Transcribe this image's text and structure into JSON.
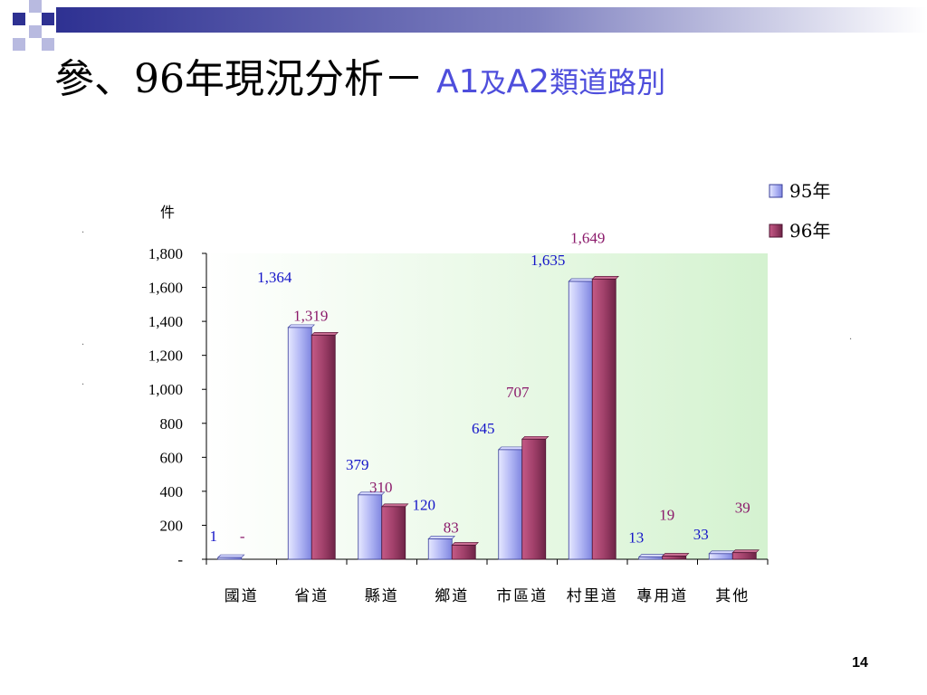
{
  "slide": {
    "title_main": "參、96年現況分析－",
    "title_sub_a1": "A1",
    "title_sub_and": "及",
    "title_sub_a2": "A2",
    "title_sub_rest": "類道路別",
    "slide_number": "14"
  },
  "chart_data": {
    "type": "bar",
    "ylabel": "件",
    "ylim": [
      0,
      1800
    ],
    "yticks": [
      0,
      200,
      400,
      600,
      800,
      1000,
      1200,
      1400,
      1600,
      1800
    ],
    "ytick_labels": [
      "-",
      "200",
      "400",
      "600",
      "800",
      "1,000",
      "1,200",
      "1,400",
      "1,600",
      "1,800"
    ],
    "categories": [
      "國道",
      "省道",
      "縣道",
      "鄉道",
      "市區道",
      "村里道",
      "專用道",
      "其他"
    ],
    "series": [
      {
        "name": "95年",
        "values": [
          1,
          1364,
          379,
          120,
          645,
          1635,
          13,
          33
        ],
        "labels": [
          "1",
          "1,364",
          "379",
          "120",
          "645",
          "1,635",
          "13",
          "33"
        ],
        "color": "#aab0f4",
        "label_color": "#1414c8"
      },
      {
        "name": "96年",
        "values": [
          0,
          1319,
          310,
          83,
          707,
          1649,
          19,
          39
        ],
        "labels": [
          "-",
          "1,319",
          "310",
          "83",
          "707",
          "1,649",
          "19",
          "39"
        ],
        "color": "#a0406a",
        "label_color": "#8b1a6b"
      }
    ],
    "legend_position": "top-right",
    "grid": false,
    "plot_background": "#dff5dc"
  }
}
